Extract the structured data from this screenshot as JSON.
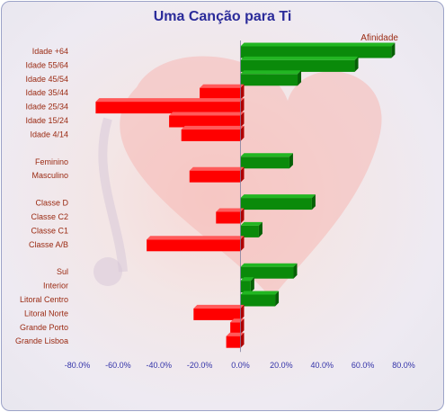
{
  "title": "Uma Canção para Ti",
  "colors": {
    "positive": "#0a8a0a",
    "negative": "#ff0000",
    "axis_text": "#3232a8",
    "category_text": "#9a2a12"
  },
  "chart_data": {
    "type": "bar",
    "orientation": "horizontal",
    "title": "Uma Canção para Ti",
    "series": [
      {
        "name": "Afinidade"
      }
    ],
    "groups": [
      {
        "items": [
          {
            "label": "Idade +64",
            "value": 74
          },
          {
            "label": "Idade 55/64",
            "value": 56
          },
          {
            "label": "Idade 45/54",
            "value": 28
          },
          {
            "label": "Idade 35/44",
            "value": -20
          },
          {
            "label": "Idade 25/34",
            "value": -71
          },
          {
            "label": "Idade 15/24",
            "value": -35
          },
          {
            "label": "Idade 4/14",
            "value": -29
          }
        ]
      },
      {
        "items": [
          {
            "label": "Feminino",
            "value": 24
          },
          {
            "label": "Masculino",
            "value": -25
          }
        ]
      },
      {
        "items": [
          {
            "label": "Classe D",
            "value": 35
          },
          {
            "label": "Classe C2",
            "value": -12
          },
          {
            "label": "Classe C1",
            "value": 9
          },
          {
            "label": "Classe A/B",
            "value": -46
          }
        ]
      },
      {
        "items": [
          {
            "label": "Sul",
            "value": 26
          },
          {
            "label": "Interior",
            "value": 5
          },
          {
            "label": "Litoral Centro",
            "value": 17
          },
          {
            "label": "Litoral Norte",
            "value": -23
          },
          {
            "label": "Grande Porto",
            "value": -5
          },
          {
            "label": "Grande Lisboa",
            "value": -7
          }
        ]
      }
    ],
    "xlim": [
      -80,
      80
    ],
    "xticks": [
      "-80.0%",
      "-60.0%",
      "-40.0%",
      "-20.0%",
      "0.0%",
      "20.0%",
      "40.0%",
      "60.0%",
      "80.0%"
    ],
    "legend_position": "top-right"
  }
}
